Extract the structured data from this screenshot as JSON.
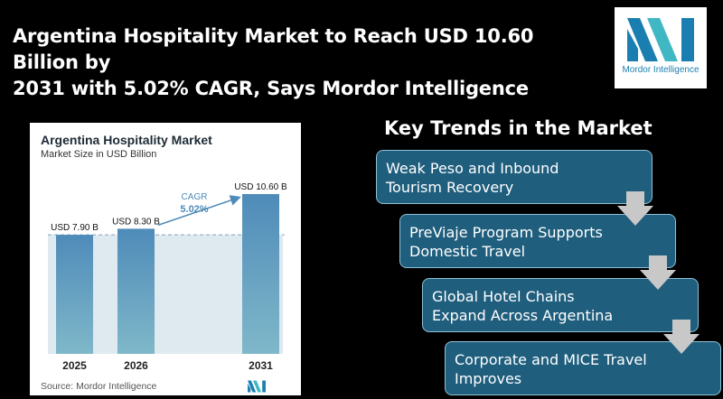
{
  "headline": {
    "line1": "Argentina Hospitality Market to Reach USD 10.60 Billion by",
    "line2": "2031 with 5.02% CAGR, Says Mordor Intelligence"
  },
  "logo": {
    "text": "Mordor Intelligence",
    "accent_color": "#1a7fb0",
    "teal_color": "#3fb8c4"
  },
  "chart_data": {
    "type": "bar",
    "title": "Argentina Hospitality Market",
    "subtitle": "Market Size in USD Billion",
    "categories": [
      "2025",
      "2026",
      "2031"
    ],
    "values": [
      7.9,
      8.3,
      10.6
    ],
    "value_labels": [
      "USD 7.90 B",
      "USD 8.30 B",
      "USD 10.60 B"
    ],
    "cagr_label": "CAGR",
    "cagr_value": "5.02%",
    "source": "Source: Mordor Intelligence",
    "bar_color_top": "#4f8bb9",
    "bar_color_bottom": "#7fb8c9",
    "reference_line": 7.9
  },
  "trends": {
    "title": "Key Trends in the Market",
    "items": [
      {
        "line1": "Weak Peso and Inbound",
        "line2": "Tourism Recovery"
      },
      {
        "line1": "PreViaje Program Supports",
        "line2": "Domestic Travel"
      },
      {
        "line1": "Global Hotel Chains",
        "line2": "Expand Across Argentina"
      },
      {
        "line1": "Corporate and MICE Travel",
        "line2": "Improves"
      }
    ],
    "box_color": "#1f5e7d",
    "arrow_color": "#c8c8c8"
  }
}
